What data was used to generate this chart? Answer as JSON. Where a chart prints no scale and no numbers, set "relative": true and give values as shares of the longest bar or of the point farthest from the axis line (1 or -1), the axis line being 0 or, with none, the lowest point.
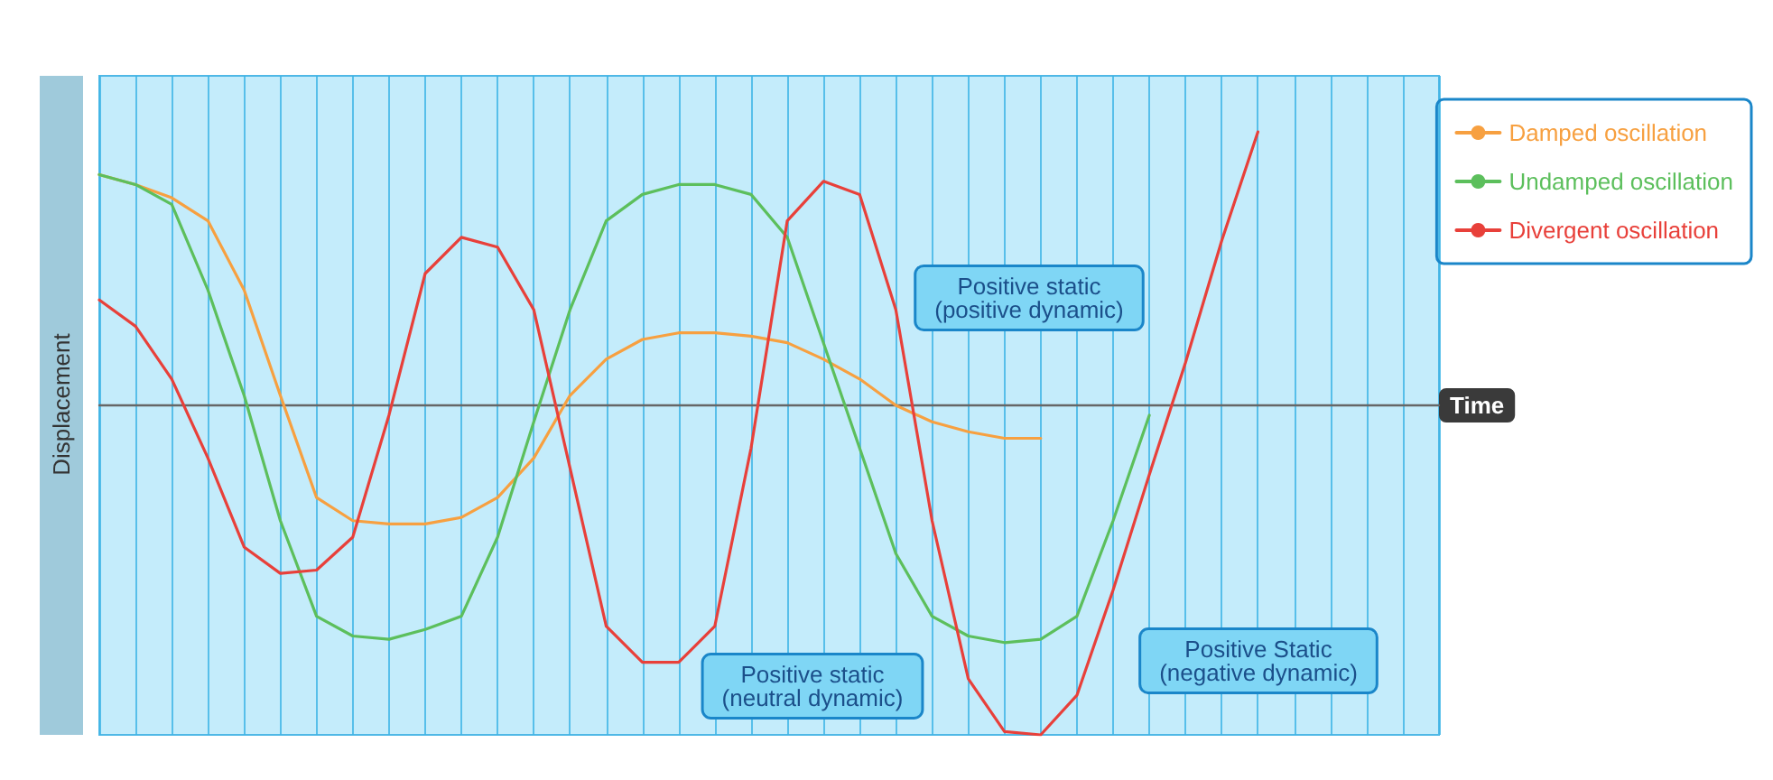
{
  "chart_data": {
    "type": "line",
    "relative": true,
    "xlabel": "Time",
    "ylabel": "Displacement",
    "categories": [
      null,
      null,
      null,
      null,
      null,
      null,
      null,
      null,
      null,
      null,
      null,
      null,
      null,
      null,
      null,
      null,
      null,
      null,
      null,
      null,
      null,
      null,
      null,
      null,
      null,
      null,
      null,
      null,
      null,
      null,
      null,
      null,
      null,
      null,
      null,
      null,
      null,
      null
    ],
    "series": [
      {
        "name": "Damped oscillation",
        "color": "#f7a040",
        "values": [
          0.7,
          0.67,
          0.63,
          0.56,
          0.35,
          0.03,
          -0.28,
          -0.35,
          -0.36,
          -0.36,
          -0.34,
          -0.28,
          -0.16,
          0.03,
          0.14,
          0.2,
          0.22,
          0.22,
          0.21,
          0.19,
          0.14,
          0.08,
          0,
          -0.05,
          -0.08,
          -0.1,
          -0.1,
          null,
          null,
          null,
          null,
          null,
          null,
          null,
          null,
          null,
          null,
          null
        ]
      },
      {
        "name": "Undamped oscillation",
        "color": "#5cbf5c",
        "values": [
          0.7,
          0.67,
          0.61,
          0.35,
          0.03,
          -0.35,
          -0.64,
          -0.7,
          -0.71,
          -0.68,
          -0.64,
          -0.4,
          -0.05,
          0.29,
          0.56,
          0.64,
          0.67,
          0.67,
          0.64,
          0.51,
          0.19,
          -0.13,
          -0.45,
          -0.64,
          -0.7,
          -0.72,
          -0.71,
          -0.64,
          -0.35,
          -0.03,
          null,
          null,
          null,
          null,
          null,
          null,
          null,
          null
        ]
      },
      {
        "name": "Divergent oscillation",
        "color": "#e8403a",
        "values": [
          0.32,
          0.24,
          0.08,
          -0.16,
          -0.43,
          -0.51,
          -0.5,
          -0.4,
          -0.03,
          0.4,
          0.51,
          0.48,
          0.29,
          -0.19,
          -0.67,
          -0.78,
          -0.78,
          -0.67,
          -0.13,
          0.56,
          0.68,
          0.64,
          0.29,
          -0.35,
          -0.83,
          -0.99,
          -1.0,
          -0.88,
          -0.56,
          -0.21,
          0.13,
          0.5,
          0.83,
          null,
          null,
          null,
          null,
          null
        ]
      }
    ],
    "annotations": [
      "Positive static\n(positive dynamic)",
      "Positive static\n(neutral dynamic)",
      "Positive Static\n(negative dynamic)"
    ],
    "grid": "x",
    "legend": "top right",
    "marker": "none",
    "line_style": "solid"
  }
}
